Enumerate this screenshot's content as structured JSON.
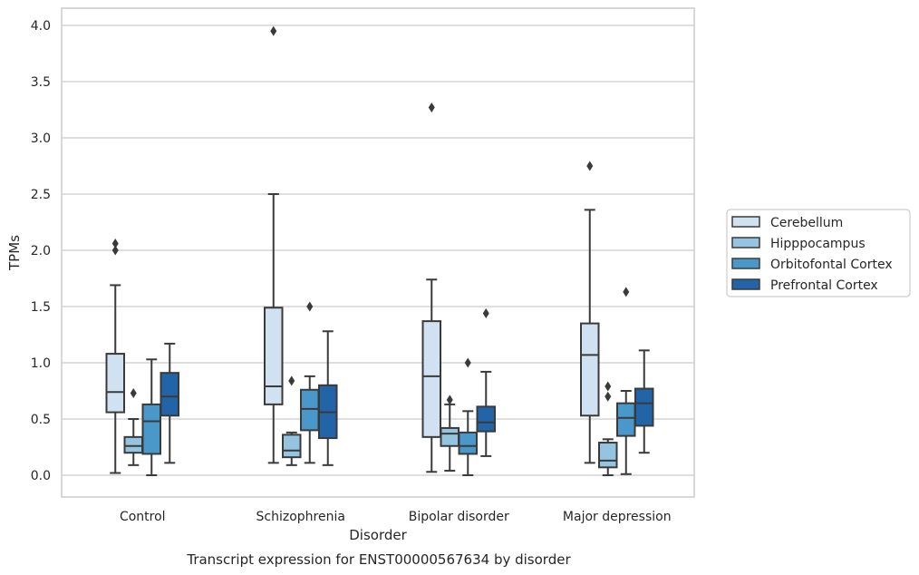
{
  "chart_data": {
    "type": "boxplot",
    "caption": "Transcript expression for ENST00000567634 by disorder",
    "xlabel": "Disorder",
    "ylabel": "TPMs",
    "ylim": [
      -0.19,
      4.16
    ],
    "yticks": [
      "0.0",
      "0.5",
      "1.0",
      "1.5",
      "2.0",
      "2.5",
      "3.0",
      "3.5",
      "4.0"
    ],
    "grid": "horizontal",
    "legend_position": "right",
    "categories": [
      "Control",
      "Schizophrenia",
      "Bipolar disorder",
      "Major depression"
    ],
    "series": [
      {
        "name": "Cerebellum",
        "color": "#d0e1f2",
        "boxes": [
          {
            "whisker_low": 0.02,
            "q1": 0.56,
            "median": 0.74,
            "q3": 1.08,
            "whisker_high": 1.69,
            "outliers": [
              2.0,
              2.06
            ]
          },
          {
            "whisker_low": 0.11,
            "q1": 0.63,
            "median": 0.79,
            "q3": 1.49,
            "whisker_high": 2.5,
            "outliers": [
              3.95
            ]
          },
          {
            "whisker_low": 0.03,
            "q1": 0.34,
            "median": 0.88,
            "q3": 1.37,
            "whisker_high": 1.74,
            "outliers": [
              3.27
            ]
          },
          {
            "whisker_low": 0.11,
            "q1": 0.53,
            "median": 1.07,
            "q3": 1.35,
            "whisker_high": 2.36,
            "outliers": [
              2.75
            ]
          }
        ]
      },
      {
        "name": "Hipppocampus",
        "color": "#94c4df",
        "boxes": [
          {
            "whisker_low": 0.09,
            "q1": 0.2,
            "median": 0.26,
            "q3": 0.34,
            "whisker_high": 0.5,
            "outliers": [
              0.73
            ]
          },
          {
            "whisker_low": 0.09,
            "q1": 0.16,
            "median": 0.22,
            "q3": 0.36,
            "whisker_high": 0.38,
            "outliers": [
              0.84
            ]
          },
          {
            "whisker_low": 0.04,
            "q1": 0.26,
            "median": 0.37,
            "q3": 0.42,
            "whisker_high": 0.63,
            "outliers": [
              0.67
            ]
          },
          {
            "whisker_low": 0.0,
            "q1": 0.07,
            "median": 0.13,
            "q3": 0.29,
            "whisker_high": 0.32,
            "outliers": [
              0.7,
              0.79
            ]
          }
        ]
      },
      {
        "name": "Orbitofontal Cortex",
        "color": "#4a98c9",
        "boxes": [
          {
            "whisker_low": 0.0,
            "q1": 0.19,
            "median": 0.48,
            "q3": 0.63,
            "whisker_high": 1.03,
            "outliers": []
          },
          {
            "whisker_low": 0.11,
            "q1": 0.4,
            "median": 0.59,
            "q3": 0.76,
            "whisker_high": 0.88,
            "outliers": [
              1.5
            ]
          },
          {
            "whisker_low": 0.0,
            "q1": 0.19,
            "median": 0.26,
            "q3": 0.38,
            "whisker_high": 0.57,
            "outliers": [
              1.0
            ]
          },
          {
            "whisker_low": 0.01,
            "q1": 0.35,
            "median": 0.51,
            "q3": 0.64,
            "whisker_high": 0.75,
            "outliers": [
              1.63
            ]
          }
        ]
      },
      {
        "name": "Prefrontal Cortex",
        "color": "#2264a8",
        "boxes": [
          {
            "whisker_low": 0.11,
            "q1": 0.53,
            "median": 0.7,
            "q3": 0.91,
            "whisker_high": 1.17,
            "outliers": []
          },
          {
            "whisker_low": 0.09,
            "q1": 0.33,
            "median": 0.56,
            "q3": 0.8,
            "whisker_high": 1.28,
            "outliers": []
          },
          {
            "whisker_low": 0.17,
            "q1": 0.39,
            "median": 0.47,
            "q3": 0.61,
            "whisker_high": 0.92,
            "outliers": [
              1.44
            ]
          },
          {
            "whisker_low": 0.2,
            "q1": 0.44,
            "median": 0.64,
            "q3": 0.77,
            "whisker_high": 1.11,
            "outliers": []
          }
        ]
      }
    ]
  }
}
